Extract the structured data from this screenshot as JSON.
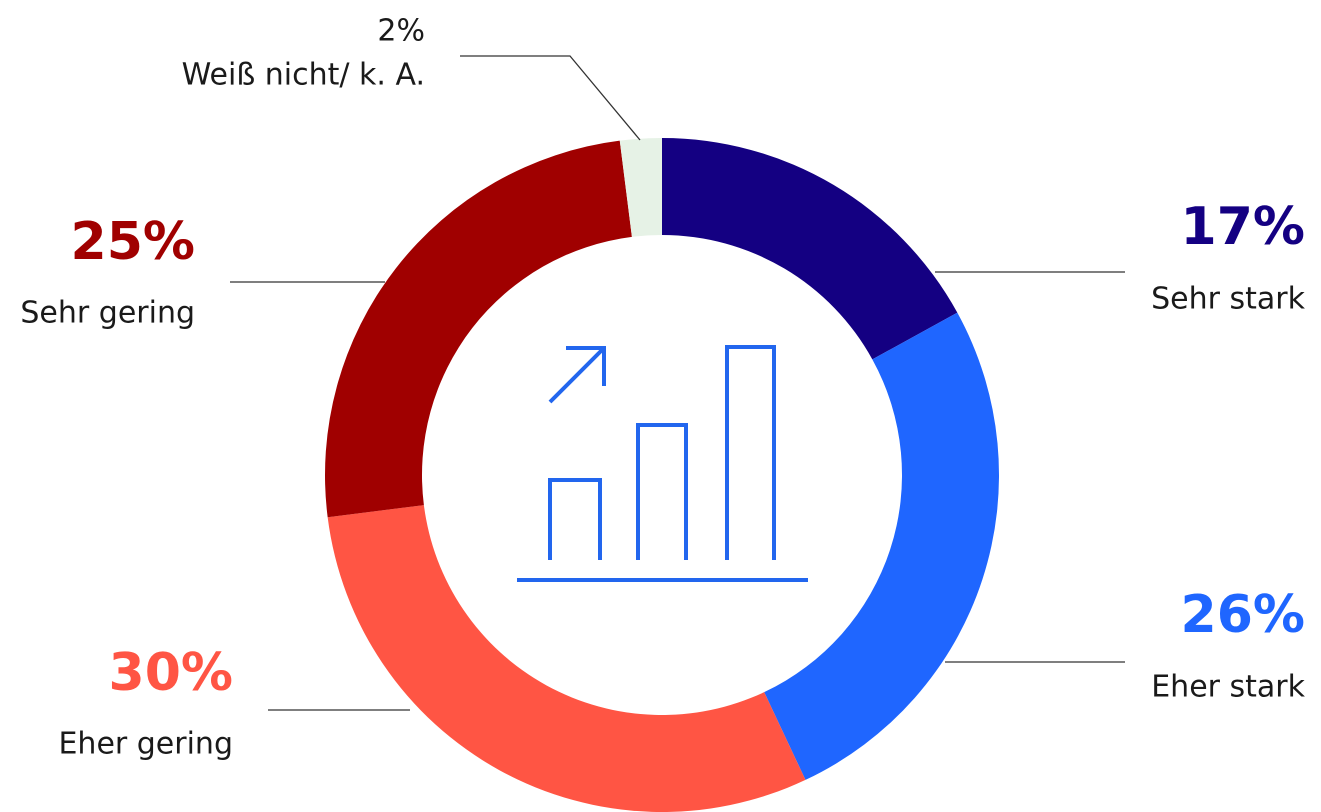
{
  "chart_data": {
    "type": "pie",
    "categories": [
      "Sehr stark",
      "Eher stark",
      "Eher gering",
      "Sehr gering",
      "Weiß nicht/ k. A."
    ],
    "values": [
      17,
      26,
      30,
      25,
      2
    ],
    "value_labels": [
      "17%",
      "26%",
      "30%",
      "25%",
      "2%"
    ],
    "colors": [
      "#140082",
      "#1f66ff",
      "#ff5544",
      "#a00000",
      "#e6f2e6"
    ]
  }
}
